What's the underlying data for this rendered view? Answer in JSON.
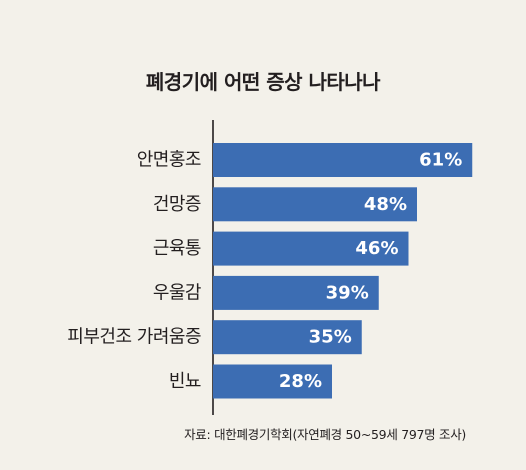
{
  "chart_data": {
    "type": "bar",
    "orientation": "horizontal",
    "title": "폐경기에 어떤 증상 나타나나",
    "categories": [
      "안면홍조",
      "건망증",
      "근육통",
      "우울감",
      "피부건조 가려움증",
      "빈뇨"
    ],
    "values": [
      61,
      48,
      46,
      39,
      35,
      28
    ],
    "value_labels": [
      "61%",
      "48%",
      "46%",
      "39%",
      "35%",
      "28%"
    ],
    "unit": "%",
    "xlim": [
      0,
      100
    ],
    "grid": false,
    "bar_color": "#3c6db3",
    "label_color": "#ffffff",
    "axis_color": "#231f20"
  },
  "source": "자료: 대한폐경기학회(자연폐경 50~59세 797명 조사)",
  "colors": {
    "background": "#f3f1ea",
    "text": "#231f20"
  }
}
